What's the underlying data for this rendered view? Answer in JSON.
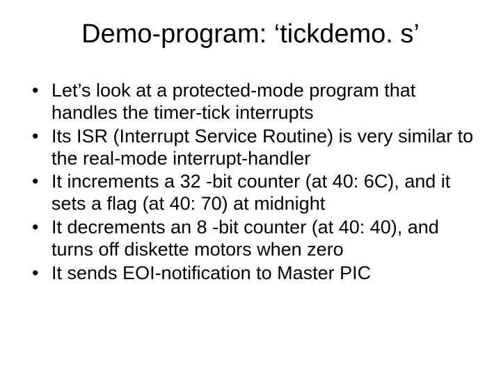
{
  "slide": {
    "title": "Demo-program: ‘tickdemo. s’",
    "bullets": [
      "Let’s look at a protected-mode program that handles the timer-tick interrupts",
      "Its ISR (Interrupt Service Routine) is very similar to the real-mode interrupt-handler",
      "It increments a 32 -bit counter (at 40: 6C), and it sets a flag (at 40: 70) at midnight",
      "It decrements an 8 -bit counter (at 40: 40), and turns off diskette motors when zero",
      "It sends EOI-notification to Master PIC"
    ],
    "title_fontsize": 38,
    "body_fontsize": 27,
    "text_color": "#000000",
    "background_color": "#ffffff",
    "font_family": "Arial"
  }
}
